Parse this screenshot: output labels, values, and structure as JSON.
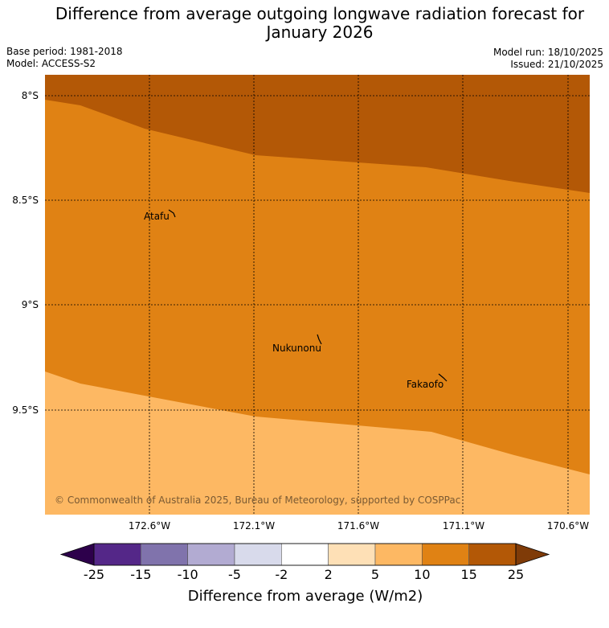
{
  "title_line1": "Difference from average outgoing longwave radiation forecast for",
  "title_line2": "January 2026",
  "meta": {
    "base_period": "Base period: 1981-2018",
    "model": "Model: ACCESS-S2",
    "model_run": "Model run: 18/10/2025",
    "issued": "Issued: 21/10/2025"
  },
  "map": {
    "lat_ticks": [
      "8°S",
      "8.5°S",
      "9°S",
      "9.5°S"
    ],
    "lon_ticks": [
      "172.6°W",
      "172.1°W",
      "171.6°W",
      "171.1°W",
      "170.6°W"
    ],
    "places": [
      "Atafu",
      "Nukunonu",
      "Fakaofo"
    ],
    "regions": [
      {
        "range": "15 to 25",
        "color": "#b35806"
      },
      {
        "range": "10 to 15",
        "color": "#e08214"
      },
      {
        "range": "5 to 10",
        "color": "#fdb863"
      }
    ],
    "copyright": "© Commonwealth of Australia 2025, Bureau of Meteorology, supported by COSPPac"
  },
  "colorbar": {
    "labels": [
      "-25",
      "-15",
      "-10",
      "-5",
      "-2",
      "2",
      "5",
      "10",
      "15",
      "25"
    ],
    "colors": [
      "#2d004b",
      "#542788",
      "#8073ac",
      "#b2abd2",
      "#d8daeb",
      "#ffffff",
      "#fee0b6",
      "#fdb863",
      "#e08214",
      "#b35806",
      "#7f3b08"
    ],
    "title": "Difference from average (W/m2)"
  }
}
